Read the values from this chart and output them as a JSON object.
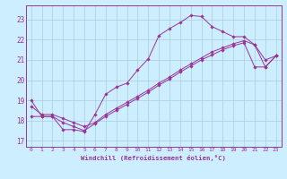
{
  "xlabel": "Windchill (Refroidissement éolien,°C)",
  "bg_color": "#cceeff",
  "grid_color": "#aaccdd",
  "line_color": "#993399",
  "xlim": [
    -0.5,
    23.5
  ],
  "ylim": [
    16.7,
    23.7
  ],
  "yticks": [
    17,
    18,
    19,
    20,
    21,
    22,
    23
  ],
  "xticks": [
    0,
    1,
    2,
    3,
    4,
    5,
    6,
    7,
    8,
    9,
    10,
    11,
    12,
    13,
    14,
    15,
    16,
    17,
    18,
    19,
    20,
    21,
    22,
    23
  ],
  "line1_x": [
    0,
    1,
    2,
    3,
    4,
    5,
    6,
    7,
    8,
    9,
    10,
    11,
    12,
    13,
    14,
    15,
    16,
    17,
    18,
    19,
    20,
    21,
    22,
    23
  ],
  "line1_y": [
    19.0,
    18.2,
    18.2,
    17.55,
    17.55,
    17.45,
    18.3,
    19.3,
    19.65,
    19.85,
    20.5,
    21.05,
    22.2,
    22.55,
    22.85,
    23.2,
    23.15,
    22.65,
    22.4,
    22.15,
    22.15,
    21.75,
    20.65,
    21.2
  ],
  "line2_x": [
    0,
    1,
    2,
    3,
    4,
    5,
    6,
    7,
    8,
    9,
    10,
    11,
    12,
    13,
    14,
    15,
    16,
    17,
    18,
    19,
    20,
    21,
    22,
    23
  ],
  "line2_y": [
    18.2,
    18.2,
    18.2,
    17.9,
    17.7,
    17.5,
    17.85,
    18.2,
    18.5,
    18.8,
    19.1,
    19.4,
    19.75,
    20.05,
    20.4,
    20.7,
    21.0,
    21.25,
    21.5,
    21.7,
    21.85,
    20.65,
    20.65,
    21.2
  ],
  "line3_x": [
    0,
    1,
    2,
    3,
    4,
    5,
    6,
    7,
    8,
    9,
    10,
    11,
    12,
    13,
    14,
    15,
    16,
    17,
    18,
    19,
    20,
    21,
    22,
    23
  ],
  "line3_y": [
    18.7,
    18.3,
    18.3,
    18.1,
    17.9,
    17.7,
    17.9,
    18.3,
    18.6,
    18.9,
    19.2,
    19.5,
    19.85,
    20.15,
    20.5,
    20.8,
    21.1,
    21.4,
    21.6,
    21.8,
    21.95,
    21.75,
    21.0,
    21.2
  ]
}
